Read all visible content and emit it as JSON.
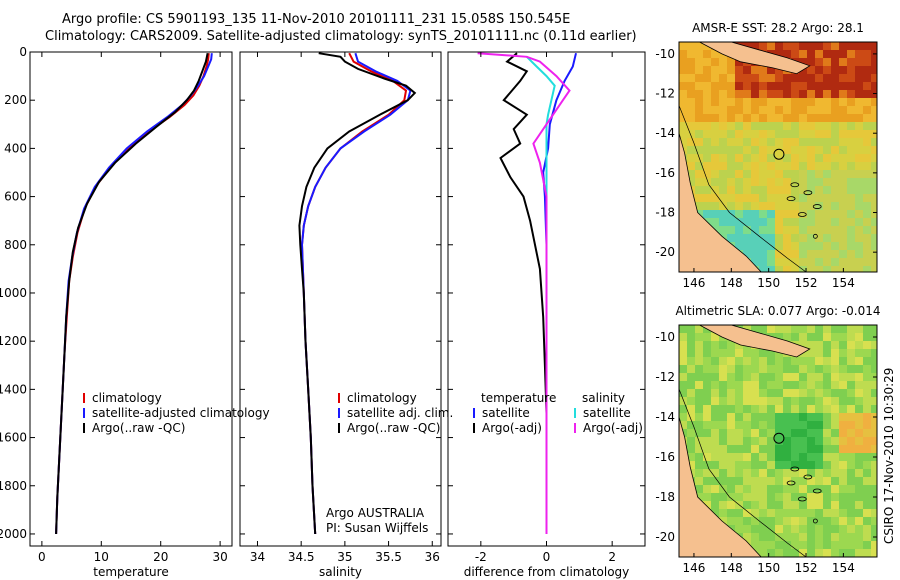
{
  "title": {
    "line1": "Argo profile: CS 5901193_135 11-Nov-2010 20101111_231 15.058S 150.545E",
    "line2": "Climatology: CARS2009. Satellite-adjusted climatology: synTS_20101111.nc (0.11d earlier)"
  },
  "colors": {
    "clim": "#e00000",
    "sat": "#1a1aff",
    "argo": "#000000",
    "cyan": "#22dddd",
    "magenta": "#ee22ee"
  },
  "chart_data": [
    {
      "type": "line",
      "id": "temperature",
      "xlabel": "temperature",
      "xlim": [
        -2,
        32
      ],
      "ylim": [
        2050,
        0
      ],
      "xticks": [
        0,
        10,
        20,
        30
      ],
      "yticks": [
        0,
        200,
        400,
        600,
        800,
        1000,
        1200,
        1400,
        1600,
        1800,
        2000
      ],
      "legend": {
        "placement": "lower-left",
        "entries": [
          "climatology",
          "satellite-adjusted climatology",
          "Argo(..raw -QC)"
        ]
      },
      "series": [
        {
          "name": "climatology",
          "color_key": "clim",
          "points": [
            [
              28.1,
              5
            ],
            [
              28.0,
              30
            ],
            [
              27.7,
              60
            ],
            [
              27.2,
              100
            ],
            [
              26.5,
              140
            ],
            [
              25.5,
              180
            ],
            [
              24.0,
              220
            ],
            [
              21.5,
              270
            ],
            [
              18.0,
              330
            ],
            [
              14.5,
              400
            ],
            [
              11.5,
              480
            ],
            [
              9.0,
              560
            ],
            [
              7.2,
              650
            ],
            [
              6.0,
              750
            ],
            [
              5.2,
              850
            ],
            [
              4.6,
              950
            ],
            [
              4.2,
              1100
            ],
            [
              3.8,
              1250
            ],
            [
              3.5,
              1400
            ],
            [
              3.2,
              1550
            ],
            [
              2.9,
              1700
            ],
            [
              2.6,
              1850
            ],
            [
              2.4,
              2000
            ]
          ]
        },
        {
          "name": "satellite-adjusted climatology",
          "color_key": "sat",
          "points": [
            [
              28.6,
              5
            ],
            [
              28.5,
              30
            ],
            [
              28.0,
              60
            ],
            [
              27.3,
              100
            ],
            [
              26.3,
              140
            ],
            [
              25.1,
              180
            ],
            [
              23.6,
              220
            ],
            [
              21.1,
              270
            ],
            [
              17.7,
              330
            ],
            [
              14.3,
              400
            ],
            [
              11.3,
              480
            ],
            [
              8.9,
              560
            ],
            [
              7.1,
              650
            ],
            [
              5.9,
              750
            ],
            [
              5.1,
              850
            ],
            [
              4.5,
              950
            ],
            [
              4.1,
              1100
            ],
            [
              3.8,
              1250
            ],
            [
              3.5,
              1400
            ],
            [
              3.2,
              1550
            ],
            [
              2.9,
              1700
            ],
            [
              2.6,
              1850
            ],
            [
              2.4,
              2000
            ]
          ]
        },
        {
          "name": "Argo(..raw -QC)",
          "color_key": "argo",
          "points": [
            [
              27.9,
              5
            ],
            [
              27.6,
              40
            ],
            [
              27.0,
              80
            ],
            [
              26.4,
              120
            ],
            [
              25.6,
              160
            ],
            [
              24.4,
              200
            ],
            [
              22.4,
              250
            ],
            [
              19.3,
              310
            ],
            [
              15.8,
              380
            ],
            [
              12.3,
              460
            ],
            [
              9.6,
              540
            ],
            [
              7.6,
              630
            ],
            [
              6.1,
              730
            ],
            [
              5.2,
              830
            ],
            [
              4.6,
              950
            ],
            [
              4.1,
              1100
            ],
            [
              3.8,
              1250
            ],
            [
              3.5,
              1400
            ],
            [
              3.2,
              1550
            ],
            [
              2.9,
              1700
            ],
            [
              2.6,
              1850
            ],
            [
              2.4,
              2000
            ]
          ]
        }
      ]
    },
    {
      "type": "line",
      "id": "salinity",
      "xlabel": "salinity",
      "xlim": [
        33.8,
        36.1
      ],
      "ylim": [
        2050,
        0
      ],
      "xticks": [
        34,
        34.5,
        35,
        35.5,
        36
      ],
      "yticks": [],
      "legend": {
        "placement": "lower-right",
        "entries": [
          "climatology",
          "satellite adj. clim.",
          "Argo(..raw -QC)"
        ]
      },
      "annotation": [
        "Argo AUSTRALIA",
        "PI: Susan Wijffels"
      ],
      "series": [
        {
          "name": "climatology",
          "color_key": "clim",
          "points": [
            [
              35.05,
              5
            ],
            [
              35.1,
              40
            ],
            [
              35.3,
              80
            ],
            [
              35.55,
              120
            ],
            [
              35.7,
              160
            ],
            [
              35.68,
              200
            ],
            [
              35.5,
              260
            ],
            [
              35.2,
              330
            ],
            [
              34.95,
              400
            ],
            [
              34.78,
              480
            ],
            [
              34.66,
              560
            ],
            [
              34.58,
              640
            ],
            [
              34.53,
              720
            ],
            [
              34.51,
              800
            ],
            [
              34.52,
              900
            ],
            [
              34.53,
              1000
            ],
            [
              34.55,
              1200
            ],
            [
              34.58,
              1400
            ],
            [
              34.61,
              1600
            ],
            [
              34.63,
              1800
            ],
            [
              34.66,
              2000
            ]
          ]
        },
        {
          "name": "satellite adj. clim.",
          "color_key": "sat",
          "points": [
            [
              35.12,
              5
            ],
            [
              35.15,
              40
            ],
            [
              35.35,
              80
            ],
            [
              35.6,
              120
            ],
            [
              35.75,
              160
            ],
            [
              35.72,
              200
            ],
            [
              35.52,
              260
            ],
            [
              35.22,
              330
            ],
            [
              34.95,
              400
            ],
            [
              34.78,
              480
            ],
            [
              34.66,
              560
            ],
            [
              34.58,
              640
            ],
            [
              34.53,
              720
            ],
            [
              34.51,
              800
            ],
            [
              34.52,
              900
            ],
            [
              34.53,
              1000
            ],
            [
              34.55,
              1200
            ],
            [
              34.58,
              1400
            ],
            [
              34.61,
              1600
            ],
            [
              34.63,
              1800
            ],
            [
              34.66,
              2000
            ]
          ]
        },
        {
          "name": "Argo(..raw -QC)",
          "color_key": "argo",
          "points": [
            [
              34.7,
              5
            ],
            [
              34.95,
              20
            ],
            [
              35.0,
              40
            ],
            [
              35.15,
              70
            ],
            [
              35.45,
              110
            ],
            [
              35.7,
              140
            ],
            [
              35.8,
              170
            ],
            [
              35.72,
              200
            ],
            [
              35.4,
              260
            ],
            [
              35.05,
              330
            ],
            [
              34.8,
              400
            ],
            [
              34.65,
              480
            ],
            [
              34.56,
              560
            ],
            [
              34.51,
              640
            ],
            [
              34.48,
              720
            ],
            [
              34.49,
              800
            ],
            [
              34.51,
              900
            ],
            [
              34.53,
              1000
            ],
            [
              34.55,
              1200
            ],
            [
              34.58,
              1400
            ],
            [
              34.61,
              1600
            ],
            [
              34.63,
              1800
            ],
            [
              34.66,
              2000
            ]
          ]
        }
      ]
    },
    {
      "type": "line",
      "id": "difference",
      "xlabel": "difference from climatology",
      "xlim": [
        -3,
        3
      ],
      "ylim": [
        2050,
        0
      ],
      "xticks": [
        -2,
        0,
        2
      ],
      "yticks": [],
      "legend": {
        "placement": "lower-center",
        "groups": [
          {
            "title": "temperature",
            "entries": [
              "satellite",
              "Argo(-adj)"
            ]
          },
          {
            "title": "salinity",
            "entries": [
              "satellite",
              "Argo(-adj)"
            ]
          }
        ]
      },
      "series": [
        {
          "name": "temperature satellite",
          "color_key": "sat",
          "points": [
            [
              0.9,
              5
            ],
            [
              0.8,
              60
            ],
            [
              0.55,
              120
            ],
            [
              0.3,
              200
            ],
            [
              0.1,
              300
            ],
            [
              0.05,
              400
            ],
            [
              -0.1,
              500
            ],
            [
              -0.05,
              600
            ],
            [
              0.0,
              800
            ],
            [
              0.0,
              2000
            ]
          ]
        },
        {
          "name": "temperature Argo(-adj)",
          "color_key": "argo",
          "points": [
            [
              -0.9,
              5
            ],
            [
              -1.2,
              40
            ],
            [
              -0.6,
              80
            ],
            [
              -0.8,
              120
            ],
            [
              -1.3,
              200
            ],
            [
              -0.6,
              260
            ],
            [
              -1.0,
              320
            ],
            [
              -0.8,
              380
            ],
            [
              -1.4,
              440
            ],
            [
              -1.1,
              520
            ],
            [
              -0.7,
              600
            ],
            [
              -0.5,
              700
            ],
            [
              -0.35,
              800
            ],
            [
              -0.2,
              900
            ],
            [
              -0.1,
              1100
            ],
            [
              -0.05,
              1300
            ],
            [
              0.0,
              1500
            ],
            [
              0.0,
              2000
            ]
          ]
        },
        {
          "name": "salinity satellite",
          "color_key": "cyan",
          "points": [
            [
              -0.6,
              20
            ],
            [
              -0.3,
              60
            ],
            [
              0.0,
              100
            ],
            [
              0.25,
              140
            ],
            [
              0.15,
              200
            ],
            [
              0.05,
              260
            ],
            [
              0.0,
              300
            ],
            [
              0.0,
              2000
            ]
          ]
        },
        {
          "name": "salinity Argo(-adj)",
          "color_key": "magenta",
          "points": [
            [
              -2.1,
              5
            ],
            [
              -0.6,
              20
            ],
            [
              -0.2,
              40
            ],
            [
              0.3,
              100
            ],
            [
              0.7,
              160
            ],
            [
              0.5,
              200
            ],
            [
              0.0,
              300
            ],
            [
              -0.4,
              380
            ],
            [
              -0.2,
              460
            ],
            [
              0.0,
              600
            ],
            [
              0.0,
              2000
            ]
          ]
        }
      ]
    },
    {
      "type": "heatmap",
      "id": "sst-map",
      "title": "AMSR-E SST: 28.2  Argo: 28.1",
      "xlim": [
        145.2,
        155.8
      ],
      "ylim": [
        -21,
        -9.4
      ],
      "xticks": [
        146,
        148,
        150,
        152,
        154
      ],
      "yticks": [
        -10,
        -12,
        -14,
        -16,
        -18,
        -20
      ],
      "marker": {
        "lon": 150.55,
        "lat": -15.06
      }
    },
    {
      "type": "heatmap",
      "id": "sla-map",
      "title": "Altimetric SLA: 0.077  Argo: -0.014",
      "xlim": [
        145.2,
        155.8
      ],
      "ylim": [
        -21,
        -9.4
      ],
      "xticks": [
        146,
        148,
        150,
        152,
        154
      ],
      "yticks": [
        -10,
        -12,
        -14,
        -16,
        -18,
        -20
      ],
      "marker": {
        "lon": 150.55,
        "lat": -15.06
      }
    }
  ],
  "credit": "CSIRO 17-Nov-2010 10:30:29"
}
